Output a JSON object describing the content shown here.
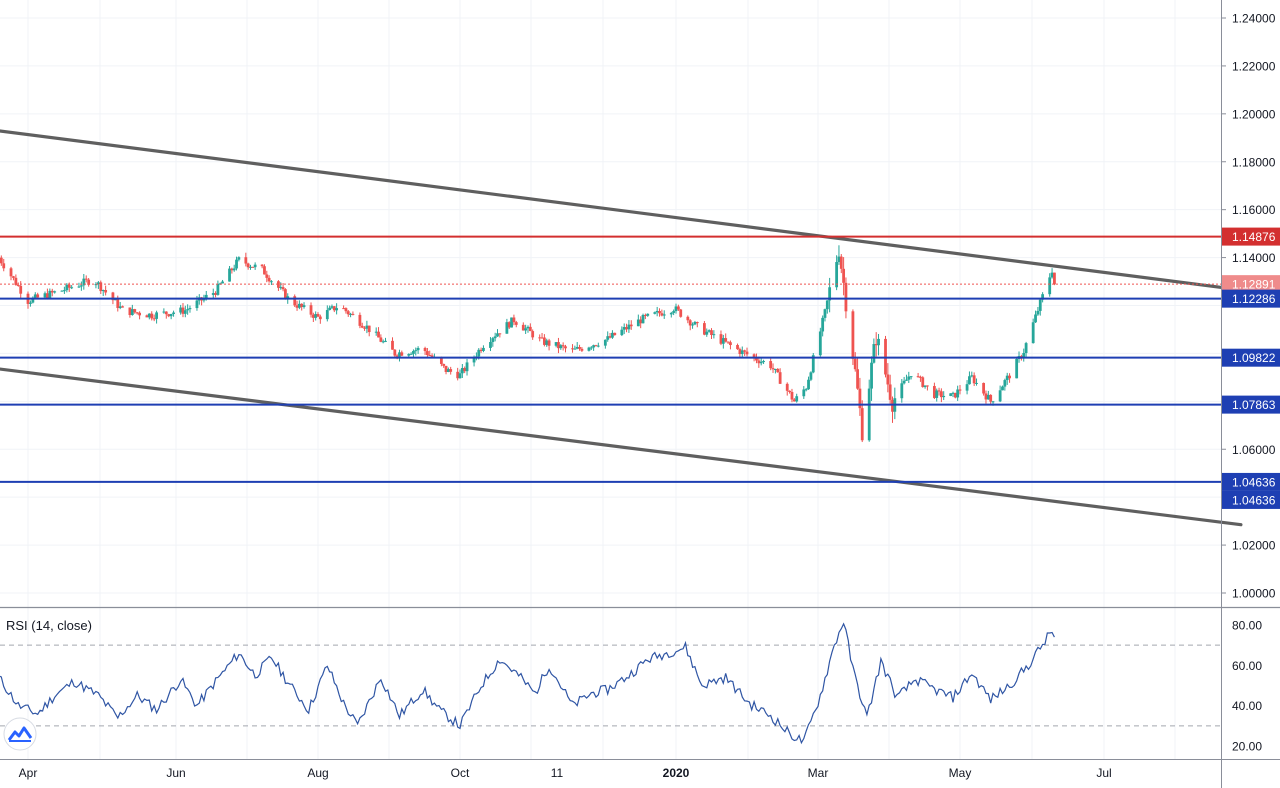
{
  "header": {
    "symbol_fragment": ""
  },
  "colors": {
    "up": "#26a69a",
    "down": "#ef5350",
    "support": "#1e3fb3",
    "resistance": "#d32f2f",
    "trend": "#5f5f5f",
    "rsi": "#2f55a4",
    "grid": "#f0f3f7",
    "axis_text": "#131722"
  },
  "chart_data": [
    {
      "type": "candlestick",
      "title": "",
      "x_axis": {
        "tick_labels": [
          "Apr",
          "Jun",
          "Aug",
          "Oct",
          "11",
          "2020",
          "Mar",
          "May",
          "Jul"
        ],
        "bold_ticks": [
          "2020"
        ]
      },
      "y_axis": {
        "tick_labels": [
          "1.24000",
          "1.22000",
          "1.20000",
          "1.18000",
          "1.16000",
          "1.14000",
          "1.06000",
          "1.02000",
          "1.00000"
        ],
        "ylim": [
          0.99,
          1.245
        ]
      },
      "grid": true,
      "price_levels": [
        {
          "value": "1.14876",
          "kind": "resistance",
          "style": "solid"
        },
        {
          "value": "1.12891",
          "kind": "last-price",
          "style": "dotted"
        },
        {
          "value": "1.12286",
          "kind": "support",
          "style": "solid"
        },
        {
          "value": "1.09822",
          "kind": "support",
          "style": "solid"
        },
        {
          "value": "1.07863",
          "kind": "support",
          "style": "solid"
        },
        {
          "value": "1.04636",
          "kind": "support",
          "style": "solid"
        }
      ],
      "extra_axis_labels": [
        "1.04636"
      ],
      "trendlines": [
        {
          "name": "upper-channel",
          "from": {
            "date": "2019-02-01",
            "price": 1.199
          },
          "to": {
            "date": "2020-08-28",
            "price": 1.1265
          }
        },
        {
          "name": "lower-channel",
          "from": {
            "date": "2019-02-01",
            "price": 1.0995
          },
          "to": {
            "date": "2020-08-28",
            "price": 1.0285
          }
        }
      ],
      "close_path": [
        [
          "2019-03-20",
          1.14
        ],
        [
          "2019-04-01",
          1.122
        ],
        [
          "2019-04-14",
          1.126
        ],
        [
          "2019-04-28",
          1.131
        ],
        [
          "2019-05-10",
          1.118
        ],
        [
          "2019-05-22",
          1.116
        ],
        [
          "2019-06-05",
          1.118
        ],
        [
          "2019-06-18",
          1.126
        ],
        [
          "2019-06-28",
          1.139
        ],
        [
          "2019-07-08",
          1.135
        ],
        [
          "2019-07-20",
          1.122
        ],
        [
          "2019-08-01",
          1.115
        ],
        [
          "2019-08-10",
          1.12
        ],
        [
          "2019-08-22",
          1.111
        ],
        [
          "2019-09-03",
          1.1
        ],
        [
          "2019-09-15",
          1.102
        ],
        [
          "2019-09-25",
          1.093
        ],
        [
          "2019-10-01",
          1.091
        ],
        [
          "2019-10-12",
          1.105
        ],
        [
          "2019-10-24",
          1.114
        ],
        [
          "2019-11-05",
          1.105
        ],
        [
          "2019-11-18",
          1.101
        ],
        [
          "2019-12-03",
          1.106
        ],
        [
          "2019-12-17",
          1.114
        ],
        [
          "2019-12-31",
          1.119
        ],
        [
          "2020-01-10",
          1.111
        ],
        [
          "2020-01-28",
          1.101
        ],
        [
          "2020-02-10",
          1.095
        ],
        [
          "2020-02-20",
          1.08
        ],
        [
          "2020-02-25",
          1.086
        ],
        [
          "2020-03-04",
          1.117
        ],
        [
          "2020-03-10",
          1.144
        ],
        [
          "2020-03-16",
          1.1
        ],
        [
          "2020-03-20",
          1.068
        ],
        [
          "2020-03-26",
          1.107
        ],
        [
          "2020-04-02",
          1.08
        ],
        [
          "2020-04-10",
          1.092
        ],
        [
          "2020-04-20",
          1.083
        ],
        [
          "2020-04-28",
          1.082
        ],
        [
          "2020-05-06",
          1.09
        ],
        [
          "2020-05-14",
          1.08
        ],
        [
          "2020-05-22",
          1.091
        ],
        [
          "2020-05-28",
          1.101
        ],
        [
          "2020-06-04",
          1.121
        ],
        [
          "2020-06-09",
          1.135
        ],
        [
          "2020-06-10",
          1.1289
        ]
      ]
    },
    {
      "type": "line",
      "title": "RSI (14, close)",
      "y_axis": {
        "tick_labels": [
          "80.00",
          "60.00",
          "40.00",
          "20.00"
        ],
        "ylim": [
          15,
          85
        ]
      },
      "bands": [
        70,
        30
      ],
      "grid": true,
      "series": [
        {
          "points": [
            [
              "2019-03-20",
              54
            ],
            [
              "2019-03-28",
              40
            ],
            [
              "2019-04-05",
              36
            ],
            [
              "2019-04-12",
              45
            ],
            [
              "2019-04-20",
              52
            ],
            [
              "2019-04-30",
              45
            ],
            [
              "2019-05-08",
              34
            ],
            [
              "2019-05-16",
              45
            ],
            [
              "2019-05-24",
              38
            ],
            [
              "2019-06-03",
              53
            ],
            [
              "2019-06-10",
              40
            ],
            [
              "2019-06-18",
              52
            ],
            [
              "2019-06-28",
              66
            ],
            [
              "2019-07-05",
              55
            ],
            [
              "2019-07-12",
              64
            ],
            [
              "2019-07-20",
              50
            ],
            [
              "2019-07-28",
              38
            ],
            [
              "2019-08-05",
              60
            ],
            [
              "2019-08-12",
              41
            ],
            [
              "2019-08-18",
              30
            ],
            [
              "2019-08-28",
              54
            ],
            [
              "2019-09-05",
              35
            ],
            [
              "2019-09-15",
              48
            ],
            [
              "2019-09-22",
              38
            ],
            [
              "2019-10-01",
              30
            ],
            [
              "2019-10-10",
              50
            ],
            [
              "2019-10-18",
              63
            ],
            [
              "2019-10-26",
              55
            ],
            [
              "2019-11-02",
              46
            ],
            [
              "2019-11-08",
              60
            ],
            [
              "2019-11-18",
              40
            ],
            [
              "2019-11-26",
              46
            ],
            [
              "2019-12-03",
              48
            ],
            [
              "2019-12-12",
              55
            ],
            [
              "2019-12-20",
              63
            ],
            [
              "2019-12-28",
              66
            ],
            [
              "2020-01-05",
              69
            ],
            [
              "2020-01-12",
              50
            ],
            [
              "2020-01-22",
              54
            ],
            [
              "2020-02-01",
              41
            ],
            [
              "2020-02-10",
              35
            ],
            [
              "2020-02-18",
              26
            ],
            [
              "2020-02-24",
              22
            ],
            [
              "2020-03-02",
              45
            ],
            [
              "2020-03-08",
              70
            ],
            [
              "2020-03-12",
              82
            ],
            [
              "2020-03-16",
              58
            ],
            [
              "2020-03-22",
              34
            ],
            [
              "2020-03-28",
              62
            ],
            [
              "2020-04-04",
              44
            ],
            [
              "2020-04-12",
              53
            ],
            [
              "2020-04-20",
              48
            ],
            [
              "2020-04-28",
              44
            ],
            [
              "2020-05-06",
              56
            ],
            [
              "2020-05-14",
              43
            ],
            [
              "2020-05-22",
              50
            ],
            [
              "2020-05-30",
              60
            ],
            [
              "2020-06-06",
              72
            ],
            [
              "2020-06-09",
              77
            ],
            [
              "2020-06-10",
              74
            ]
          ]
        }
      ]
    }
  ]
}
